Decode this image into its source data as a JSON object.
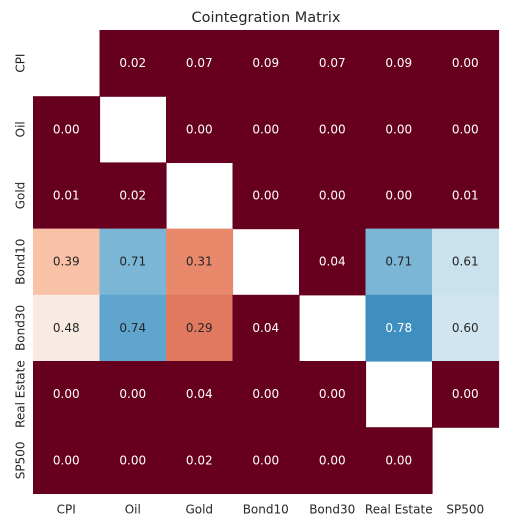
{
  "chart_data": {
    "type": "heatmap",
    "title": "Cointegration Matrix",
    "xlabel": "",
    "ylabel": "",
    "categories": [
      "CPI",
      "Oil",
      "Gold",
      "Bond10",
      "Bond30",
      "Real Estate",
      "SP500"
    ],
    "x_tick_labels": [
      "CPI",
      "Oil",
      "Gold",
      "Bond10",
      "Bond30",
      "Real Estate",
      "SP500"
    ],
    "y_tick_labels": [
      "CPI",
      "Oil",
      "Gold",
      "Bond10",
      "Bond30",
      "Real Estate",
      "SP500"
    ],
    "values": [
      [
        null,
        0.02,
        0.07,
        0.09,
        0.07,
        0.09,
        0.0
      ],
      [
        0.0,
        null,
        0.0,
        0.0,
        0.0,
        0.0,
        0.0
      ],
      [
        0.01,
        0.02,
        null,
        0.0,
        0.0,
        0.0,
        0.01
      ],
      [
        0.39,
        0.71,
        0.31,
        null,
        0.04,
        0.71,
        0.61
      ],
      [
        0.48,
        0.74,
        0.29,
        0.04,
        null,
        0.78,
        0.6
      ],
      [
        0.0,
        0.0,
        0.04,
        0.0,
        0.0,
        null,
        0.0
      ],
      [
        0.0,
        0.0,
        0.02,
        0.0,
        0.0,
        0.0,
        null
      ]
    ],
    "value_format": "0.00",
    "colormap": "RdBu (diverging, red low, blue high)",
    "colorbar": false,
    "masked_diagonal": true,
    "annotations": true,
    "grid": false
  }
}
